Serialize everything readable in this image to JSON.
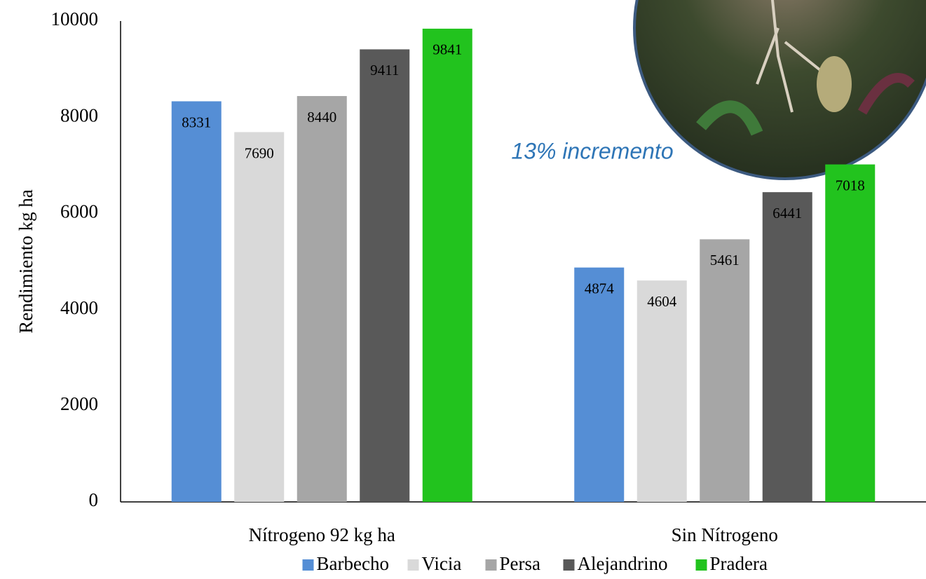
{
  "chart_data": {
    "type": "bar",
    "y_label": "Rendimiento  kg ha",
    "annotation": "13% incremento",
    "categories": [
      "Nítrogeno 92 kg ha",
      "Sin Nítrogeno"
    ],
    "series": [
      {
        "name": "Barbecho",
        "color": "#558ed5",
        "values": [
          8331,
          4874
        ]
      },
      {
        "name": "Vicia",
        "color": "#d9d9d9",
        "values": [
          7690,
          4604
        ]
      },
      {
        "name": "Persa",
        "color": "#a6a6a6",
        "values": [
          8440,
          5461
        ]
      },
      {
        "name": "Alejandrino",
        "color": "#595959",
        "values": [
          9411,
          6441
        ]
      },
      {
        "name": "Pradera",
        "color": "#22c31e",
        "values": [
          9841,
          7018
        ]
      }
    ],
    "ylim": [
      0,
      10000
    ],
    "yticks": [
      0,
      2000,
      4000,
      6000,
      8000,
      10000
    ],
    "grid": false
  }
}
